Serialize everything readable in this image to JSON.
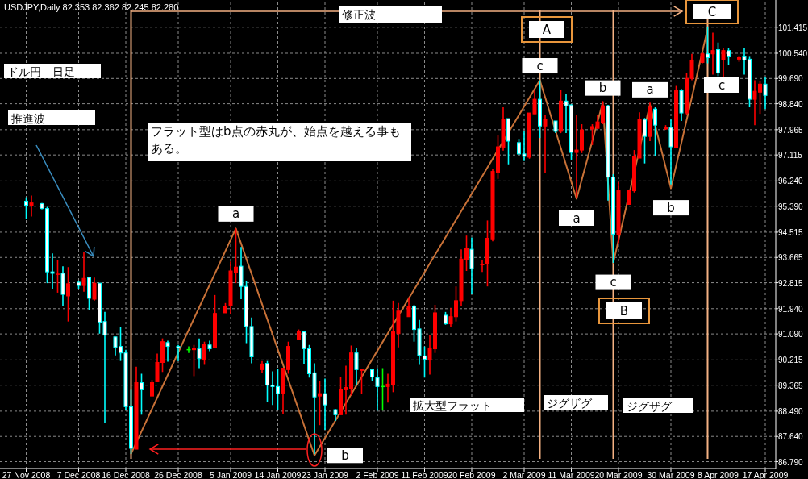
{
  "chart_data": {
    "type": "candlestick",
    "title": "USDJPY,Daily  82.353 82.362 82.245 82.280",
    "grid": true,
    "ylim": [
      86.56,
      102.25
    ],
    "xlim": [
      "2008-11-22",
      "2009-04-19"
    ],
    "yticks": [
      {
        "value": 86.79,
        "label": "86.790"
      },
      {
        "value": 87.64,
        "label": "87.640"
      },
      {
        "value": 88.49,
        "label": "88.490"
      },
      89.365,
      90.215,
      {
        "value": 91.09,
        "label": "91.090"
      },
      {
        "value": 91.94,
        "label": "91.940"
      },
      92.815,
      93.665,
      94.515,
      {
        "value": 95.39,
        "label": "95.390"
      },
      {
        "value": 96.24,
        "label": "96.240"
      },
      97.115,
      97.965,
      {
        "value": 98.84,
        "label": "98.840"
      },
      {
        "value": 99.69,
        "label": "99.690"
      },
      {
        "value": 100.54,
        "label": "100.540"
      },
      101.415
    ],
    "xticks": [
      {
        "value": "2008-11-27",
        "label": "27 Nov 2008"
      },
      {
        "value": "2008-12-07",
        "label": "7 Dec 2008"
      },
      {
        "value": "2008-12-16",
        "label": "16 Dec 2008"
      },
      {
        "value": "2008-12-26",
        "label": "26 Dec 2008"
      },
      {
        "value": "2009-01-05",
        "label": "5 Jan 2009"
      },
      {
        "value": "2009-01-14",
        "label": "14 Jan 2009"
      },
      {
        "value": "2009-01-23",
        "label": "23 Jan 2009"
      },
      {
        "value": "2009-02-02",
        "label": "2 Feb 2009"
      },
      {
        "value": "2009-02-11",
        "label": "11 Feb 2009"
      },
      {
        "value": "2009-02-20",
        "label": "20 Feb 2009"
      },
      {
        "value": "2009-03-02",
        "label": "2 Mar 2009"
      },
      {
        "value": "2009-03-11",
        "label": "11 Mar 2009"
      },
      {
        "value": "2009-03-20",
        "label": "20 Mar 2009"
      },
      {
        "value": "2009-03-30",
        "label": "30 Mar 2009"
      },
      {
        "value": "2009-04-08",
        "label": "8 Apr 2009"
      },
      {
        "value": "2009-04-17",
        "label": "17 Apr 2009"
      }
    ],
    "x": [
      "2008-11-27",
      "2008-11-28",
      "2008-11-30",
      "2008-12-01",
      "2008-12-02",
      "2008-12-03",
      "2008-12-04",
      "2008-12-05",
      "2008-12-07",
      "2008-12-08",
      "2008-12-09",
      "2008-12-10",
      "2008-12-11",
      "2008-12-12",
      "2008-12-14",
      "2008-12-15",
      "2008-12-16",
      "2008-12-17",
      "2008-12-18",
      "2008-12-19",
      "2008-12-21",
      "2008-12-22",
      "2008-12-23",
      "2008-12-24",
      "2008-12-26",
      "2008-12-28",
      "2008-12-29",
      "2008-12-30",
      "2008-12-31",
      "2009-01-01",
      "2009-01-02",
      "2009-01-04",
      "2009-01-05",
      "2009-01-06",
      "2009-01-07",
      "2009-01-08",
      "2009-01-09",
      "2009-01-11",
      "2009-01-12",
      "2009-01-13",
      "2009-01-14",
      "2009-01-15",
      "2009-01-16",
      "2009-01-18",
      "2009-01-19",
      "2009-01-20",
      "2009-01-21",
      "2009-01-22",
      "2009-01-23",
      "2009-01-25",
      "2009-01-26",
      "2009-01-27",
      "2009-01-28",
      "2009-01-29",
      "2009-01-30",
      "2009-02-01",
      "2009-02-02",
      "2009-02-03",
      "2009-02-04",
      "2009-02-05",
      "2009-02-06",
      "2009-02-08",
      "2009-02-09",
      "2009-02-10",
      "2009-02-11",
      "2009-02-12",
      "2009-02-13",
      "2009-02-15",
      "2009-02-16",
      "2009-02-17",
      "2009-02-18",
      "2009-02-19",
      "2009-02-20",
      "2009-02-22",
      "2009-02-23",
      "2009-02-24",
      "2009-02-25",
      "2009-02-26",
      "2009-02-27",
      "2009-03-01",
      "2009-03-02",
      "2009-03-03",
      "2009-03-04",
      "2009-03-05",
      "2009-03-06",
      "2009-03-08",
      "2009-03-09",
      "2009-03-10",
      "2009-03-11",
      "2009-03-12",
      "2009-03-13",
      "2009-03-15",
      "2009-03-16",
      "2009-03-17",
      "2009-03-18",
      "2009-03-19",
      "2009-03-20",
      "2009-03-22",
      "2009-03-23",
      "2009-03-24",
      "2009-03-25",
      "2009-03-26",
      "2009-03-27",
      "2009-03-29",
      "2009-03-30",
      "2009-03-31",
      "2009-04-01",
      "2009-04-02",
      "2009-04-03",
      "2009-04-05",
      "2009-04-06",
      "2009-04-07",
      "2009-04-08",
      "2009-04-09",
      "2009-04-10",
      "2009-04-12",
      "2009-04-13",
      "2009-04-14",
      "2009-04-15",
      "2009-04-16",
      "2009-04-17"
    ],
    "ohlc": [
      [
        95.56,
        95.69,
        94.96,
        95.42
      ],
      [
        95.42,
        95.75,
        95.04,
        95.5
      ],
      [
        95.48,
        95.5,
        95.29,
        95.31
      ],
      [
        95.31,
        95.37,
        92.8,
        93.18
      ],
      [
        93.18,
        93.8,
        92.59,
        93.13
      ],
      [
        93.1,
        93.59,
        92.48,
        93.1
      ],
      [
        93.13,
        93.37,
        92.02,
        92.42
      ],
      [
        92.37,
        93.34,
        91.51,
        92.78
      ],
      [
        92.83,
        92.86,
        92.59,
        92.72
      ],
      [
        92.72,
        93.86,
        92.51,
        92.96
      ],
      [
        92.99,
        92.99,
        91.88,
        92.29
      ],
      [
        92.26,
        92.99,
        92.21,
        92.8
      ],
      [
        92.8,
        92.8,
        91.1,
        91.48
      ],
      [
        91.51,
        91.83,
        88.1,
        91.05
      ],
      [
        90.99,
        90.99,
        90.37,
        90.64
      ],
      [
        90.67,
        91.32,
        90.18,
        90.45
      ],
      [
        90.45,
        90.56,
        88.54,
        88.64
      ],
      [
        88.64,
        89.21,
        87.05,
        87.24
      ],
      [
        87.21,
        89.99,
        87.21,
        89.45
      ],
      [
        89.45,
        89.75,
        88.37,
        89.21
      ],
      [
        89.0,
        89.54,
        89.0,
        89.45
      ],
      [
        89.48,
        90.43,
        89.48,
        90.13
      ],
      [
        90.13,
        90.94,
        89.81,
        90.83
      ],
      [
        90.8,
        90.86,
        90.16,
        90.67
      ],
      [
        90.67,
        90.72,
        90.18,
        90.62
      ],
      [
        90.56,
        90.67,
        90.45,
        90.56
      ],
      [
        90.56,
        90.72,
        89.67,
        90.59
      ],
      [
        90.59,
        90.94,
        89.94,
        90.26
      ],
      [
        90.21,
        90.83,
        90.05,
        90.75
      ],
      [
        90.72,
        90.86,
        90.51,
        90.59
      ],
      [
        90.62,
        92.4,
        90.62,
        91.78
      ],
      [
        91.8,
        92.13,
        91.8,
        92.02
      ],
      [
        92.05,
        93.53,
        91.75,
        93.21
      ],
      [
        93.15,
        94.64,
        92.8,
        93.34
      ],
      [
        93.37,
        94.02,
        92.26,
        92.69
      ],
      [
        92.69,
        92.88,
        90.78,
        91.34
      ],
      [
        91.34,
        91.64,
        90.1,
        90.32
      ],
      [
        89.89,
        90.18,
        89.78,
        90.08
      ],
      [
        90.1,
        90.18,
        88.81,
        89.37
      ],
      [
        89.37,
        89.83,
        88.7,
        89.32
      ],
      [
        89.32,
        89.91,
        88.54,
        89.08
      ],
      [
        89.1,
        89.94,
        88.4,
        89.94
      ],
      [
        89.89,
        90.83,
        89.75,
        90.67
      ],
      [
        90.89,
        91.24,
        90.89,
        91.16
      ],
      [
        91.16,
        91.18,
        90.08,
        90.59
      ],
      [
        90.59,
        90.72,
        89.62,
        89.75
      ],
      [
        89.78,
        90.1,
        87.05,
        88.97
      ],
      [
        89.0,
        89.51,
        88.02,
        89.08
      ],
      [
        89.08,
        89.59,
        87.86,
        88.7
      ],
      [
        88.54,
        88.56,
        88.16,
        88.37
      ],
      [
        88.37,
        89.64,
        88.37,
        89.21
      ],
      [
        89.21,
        90.02,
        88.37,
        89.29
      ],
      [
        89.24,
        90.7,
        89.02,
        90.45
      ],
      [
        90.45,
        90.62,
        89.37,
        89.89
      ],
      [
        89.86,
        89.91,
        89.08,
        89.91
      ],
      [
        89.89,
        89.89,
        89.51,
        89.64
      ],
      [
        89.62,
        89.94,
        88.51,
        89.32
      ],
      [
        89.32,
        89.94,
        88.51,
        89.32
      ],
      [
        89.32,
        89.75,
        88.78,
        89.4
      ],
      [
        89.37,
        92.21,
        89.13,
        91.16
      ],
      [
        91.1,
        92.13,
        90.64,
        91.86
      ],
      [
        91.67,
        92.32,
        91.67,
        92.02
      ],
      [
        92.02,
        92.07,
        90.83,
        91.24
      ],
      [
        91.26,
        91.56,
        90.05,
        90.37
      ],
      [
        90.35,
        90.67,
        89.62,
        90.24
      ],
      [
        90.21,
        91.05,
        89.72,
        90.62
      ],
      [
        90.59,
        92.07,
        90.45,
        91.8
      ],
      [
        91.72,
        91.83,
        91.4,
        91.43
      ],
      [
        91.43,
        91.97,
        91.32,
        91.67
      ],
      [
        91.67,
        92.69,
        91.51,
        92.21
      ],
      [
        92.21,
        93.94,
        92.02,
        93.61
      ],
      [
        93.59,
        94.4,
        93.21,
        93.96
      ],
      [
        93.94,
        94.34,
        92.42,
        93.29
      ],
      [
        93.4,
        93.59,
        93.18,
        93.42
      ],
      [
        93.45,
        94.91,
        92.69,
        94.31
      ],
      [
        94.29,
        96.64,
        94.21,
        96.56
      ],
      [
        96.53,
        97.77,
        96.31,
        97.39
      ],
      [
        97.37,
        98.72,
        97.26,
        98.31
      ],
      [
        98.34,
        98.34,
        96.8,
        97.58
      ],
      [
        97.53,
        97.66,
        97.12,
        97.15
      ],
      [
        97.15,
        97.93,
        96.91,
        97.07
      ],
      [
        97.04,
        98.53,
        96.99,
        98.53
      ],
      [
        98.5,
        99.28,
        98.5,
        98.99
      ],
      [
        98.99,
        99.63,
        97.69,
        98.09
      ],
      [
        98.09,
        98.47,
        96.5,
        98.31
      ],
      [
        98.26,
        98.26,
        97.85,
        97.91
      ],
      [
        97.91,
        99.31,
        97.85,
        98.93
      ],
      [
        98.93,
        99.17,
        97.85,
        98.77
      ],
      [
        98.8,
        98.82,
        96.96,
        97.2
      ],
      [
        97.2,
        98.47,
        95.69,
        97.28
      ],
      [
        97.28,
        98.15,
        97.18,
        97.96
      ],
      [
        97.99,
        98.15,
        97.45,
        98.07
      ],
      [
        98.01,
        98.47,
        98.01,
        98.23
      ],
      [
        98.2,
        98.93,
        98.15,
        98.77
      ],
      [
        98.77,
        98.8,
        95.58,
        96.37
      ],
      [
        96.37,
        96.47,
        93.48,
        94.45
      ],
      [
        94.42,
        96.2,
        94.15,
        95.91
      ],
      [
        95.45,
        95.91,
        95.45,
        95.91
      ],
      [
        95.91,
        97.28,
        95.85,
        97.07
      ],
      [
        97.01,
        98.55,
        97.01,
        98.31
      ],
      [
        98.31,
        98.36,
        96.83,
        97.74
      ],
      [
        97.74,
        98.88,
        97.58,
        98.72
      ],
      [
        98.66,
        98.72,
        97.07,
        98.12
      ],
      [
        97.99,
        98.12,
        97.96,
        98.04
      ],
      [
        98.04,
        98.31,
        96.12,
        97.39
      ],
      [
        97.37,
        99.44,
        97.37,
        99.28
      ],
      [
        99.28,
        99.34,
        98.26,
        98.53
      ],
      [
        98.53,
        99.88,
        98.47,
        99.69
      ],
      [
        99.69,
        100.52,
        99.63,
        100.31
      ],
      [
        100.23,
        100.58,
        100.2,
        100.52
      ],
      [
        100.52,
        101.44,
        100.2,
        100.39
      ],
      [
        100.52,
        101.23,
        99.82,
        100.63
      ],
      [
        100.66,
        100.9,
        99.77,
        99.88
      ],
      [
        100.31,
        100.71,
        99.69,
        100.63
      ],
      [
        100.63,
        100.71,
        100.15,
        100.42
      ],
      [
        100.34,
        100.44,
        100.25,
        100.39
      ],
      [
        100.42,
        100.71,
        99.82,
        100.31
      ],
      [
        100.34,
        100.42,
        98.72,
        98.99
      ],
      [
        98.99,
        99.63,
        98.12,
        99.26
      ],
      [
        99.23,
        99.61,
        98.5,
        99.5
      ],
      [
        99.5,
        99.74,
        98.66,
        99.12
      ]
    ],
    "colors": [
      "#ffffff",
      "#ff0000",
      "#ffffff",
      "#ffffff",
      "#ffffff",
      "#ff0000",
      "#ffffff",
      "#ff0000",
      "#ffffff",
      "#ff0000",
      "#ffffff",
      "#ff0000",
      "#ffffff",
      "#ffffff",
      "#ffffff",
      "#ffffff",
      "#ffffff",
      "#ffffff",
      "#ff0000",
      "#ffffff",
      "#ff0000",
      "#ff0000",
      "#ff0000",
      "#ffffff",
      "#ffffff",
      "#00ff00",
      "#ff0000",
      "#ffffff",
      "#ff0000",
      "#ffffff",
      "#ff0000",
      "#ff0000",
      "#ff0000",
      "#ff0000",
      "#ffffff",
      "#ffffff",
      "#ffffff",
      "#ff0000",
      "#ffffff",
      "#ffffff",
      "#ffffff",
      "#ff0000",
      "#ff0000",
      "#ff0000",
      "#ffffff",
      "#ffffff",
      "#ffffff",
      "#ff0000",
      "#ffffff",
      "#ffffff",
      "#ff0000",
      "#ff0000",
      "#ff0000",
      "#ffffff",
      "#ff0000",
      "#ffffff",
      "#ffffff",
      "#00ff00",
      "#ff0000",
      "#ff0000",
      "#ff0000",
      "#ff0000",
      "#ffffff",
      "#ffffff",
      "#ffffff",
      "#ff0000",
      "#ff0000",
      "#ffffff",
      "#ff0000",
      "#ff0000",
      "#ff0000",
      "#ff0000",
      "#ffffff",
      "#ff0000",
      "#ff0000",
      "#ff0000",
      "#ff0000",
      "#ff0000",
      "#ffffff",
      "#ffffff",
      "#ffffff",
      "#ff0000",
      "#ff0000",
      "#ffffff",
      "#ff0000",
      "#ffffff",
      "#ff0000",
      "#ffffff",
      "#ffffff",
      "#ff0000",
      "#ff0000",
      "#ff0000",
      "#ff0000",
      "#ff0000",
      "#ffffff",
      "#ffffff",
      "#ff0000",
      "#ff0000",
      "#ff0000",
      "#ff0000",
      "#ffffff",
      "#ff0000",
      "#ffffff",
      "#ff0000",
      "#ffffff",
      "#ff0000",
      "#ffffff",
      "#ff0000",
      "#ff0000",
      "#ff0000",
      "#ffffff",
      "#ff0000",
      "#ffffff",
      "#ff0000",
      "#ffffff",
      "#ff0000",
      "#ffffff",
      "#ffffff",
      "#ff0000",
      "#ff0000",
      "#ffffff"
    ],
    "series": [
      {
        "type": "line",
        "color": "#c87137",
        "x": [
          "2008-12-17",
          "2009-01-06",
          "2009-01-21",
          "2009-03-05",
          "2009-03-12",
          "2009-03-17",
          "2009-03-19",
          "2009-03-26",
          "2009-03-30",
          "2009-04-06"
        ],
        "values": [
          87.05,
          94.64,
          87.0,
          99.63,
          95.64,
          98.88,
          93.48,
          98.82,
          95.99,
          101.36
        ]
      }
    ],
    "ref_lines": [
      {
        "axis": "x",
        "value": "2008-12-17",
        "color": "#f4b183"
      },
      {
        "axis": "x",
        "value": "2009-03-05",
        "color": "#f4b183"
      },
      {
        "axis": "x",
        "value": "2009-03-19",
        "color": "#f4b183"
      },
      {
        "axis": "x",
        "value": "2009-04-06",
        "color": "#f4b183"
      }
    ],
    "annotations": [
      "修正波",
      "ドル円　日足",
      "推進波",
      "フラット型はb点の赤丸が、始点を越える事もある。",
      "A",
      "B",
      "C",
      "拡大型フラット",
      "ジグザグ",
      "ジグザグ",
      "c",
      {
        "text": "a",
        "x": "2009-01-06",
        "y": 94.64
      },
      {
        "text": "b",
        "x": "2009-01-21",
        "y": 87.0
      },
      {
        "text": "c",
        "x": "2009-03-05",
        "y": 99.63
      },
      {
        "text": "a",
        "x": "2009-03-12",
        "y": 95.64
      },
      {
        "text": "b",
        "x": "2009-03-17",
        "y": 98.88
      },
      {
        "text": "c",
        "x": "2009-03-19",
        "y": 93.48
      },
      {
        "text": "a",
        "x": "2009-03-26",
        "y": 98.82
      },
      {
        "text": "b",
        "x": "2009-03-30",
        "y": 95.99
      }
    ]
  }
}
